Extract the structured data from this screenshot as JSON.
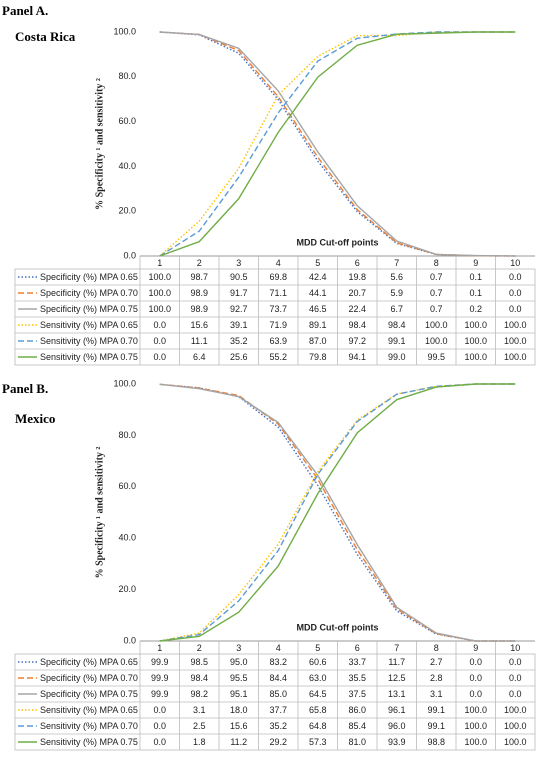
{
  "chart_data": [
    {
      "type": "line",
      "panel_label": "Panel A.",
      "title": "Costa Rica",
      "y_label": "% Specificity ¹ and sensitivity ²",
      "x_label": "MDD Cut-off points",
      "x": [
        1,
        2,
        3,
        4,
        5,
        6,
        7,
        8,
        9,
        10
      ],
      "xlim": [
        0.5,
        10.5
      ],
      "ylim": [
        0,
        100
      ],
      "yticks": [
        {
          "value": 0,
          "label": "0.0"
        },
        {
          "value": 20,
          "label": "20.0"
        },
        {
          "value": 40,
          "label": "40.0"
        },
        {
          "value": 60,
          "label": "60.0"
        },
        {
          "value": 80,
          "label": "80.0"
        },
        {
          "value": 100,
          "label": "100.0"
        }
      ],
      "grid": false,
      "series": [
        {
          "name": "Specificity (%) MPA 0.65",
          "color": "#4472c4",
          "dash": "dotted",
          "values": [
            100.0,
            98.7,
            90.5,
            69.8,
            42.4,
            19.8,
            5.6,
            0.7,
            0.1,
            0.0
          ],
          "value_labels": [
            "100.0",
            "98.7",
            "90.5",
            "69.8",
            "42.4",
            "19.8",
            "5.6",
            "0.7",
            "0.1",
            "0.0"
          ]
        },
        {
          "name": "Specificity (%) MPA 0.70",
          "color": "#ed7d31",
          "dash": "dashed",
          "values": [
            100.0,
            98.9,
            91.7,
            71.1,
            44.1,
            20.7,
            5.9,
            0.7,
            0.1,
            0.0
          ],
          "value_labels": [
            "100.0",
            "98.9",
            "91.7",
            "71.1",
            "44.1",
            "20.7",
            "5.9",
            "0.7",
            "0.1",
            "0.0"
          ]
        },
        {
          "name": "Specificity (%) MPA 0.75",
          "color": "#a5a5a5",
          "dash": "solid",
          "values": [
            100.0,
            98.9,
            92.7,
            73.7,
            46.5,
            22.4,
            6.7,
            0.7,
            0.2,
            0.0
          ],
          "value_labels": [
            "100.0",
            "98.9",
            "92.7",
            "73.7",
            "46.5",
            "22.4",
            "6.7",
            "0.7",
            "0.2",
            "0.0"
          ]
        },
        {
          "name": "Sensitivity (%) MPA 0.65",
          "color": "#ffc000",
          "dash": "dotted",
          "values": [
            0.0,
            15.6,
            39.1,
            71.9,
            89.1,
            98.4,
            98.4,
            100.0,
            100.0,
            100.0
          ],
          "value_labels": [
            "0.0",
            "15.6",
            "39.1",
            "71.9",
            "89.1",
            "98.4",
            "98.4",
            "100.0",
            "100.0",
            "100.0"
          ]
        },
        {
          "name": "Sensitivity (%) MPA 0.70",
          "color": "#5b9bd5",
          "dash": "dashed",
          "values": [
            0.0,
            11.1,
            35.2,
            63.9,
            87.0,
            97.2,
            99.1,
            100.0,
            100.0,
            100.0
          ],
          "value_labels": [
            "0.0",
            "11.1",
            "35.2",
            "63.9",
            "87.0",
            "97.2",
            "99.1",
            "100.0",
            "100.0",
            "100.0"
          ]
        },
        {
          "name": "Sensitivity (%) MPA 0.75",
          "color": "#70ad47",
          "dash": "solid",
          "values": [
            0.0,
            6.4,
            25.6,
            55.2,
            79.8,
            94.1,
            99.0,
            99.5,
            100.0,
            100.0
          ],
          "value_labels": [
            "0.0",
            "6.4",
            "25.6",
            "55.2",
            "79.8",
            "94.1",
            "99.0",
            "99.5",
            "100.0",
            "100.0"
          ]
        }
      ]
    },
    {
      "type": "line",
      "panel_label": "Panel B.",
      "title": "Mexico",
      "y_label": "% Specificity ¹ and sensitivity ²",
      "x_label": "MDD Cut-off points",
      "x": [
        1,
        2,
        3,
        4,
        5,
        6,
        7,
        8,
        9,
        10
      ],
      "xlim": [
        0.5,
        10.5
      ],
      "ylim": [
        0,
        100
      ],
      "yticks": [
        {
          "value": 0,
          "label": "0.0"
        },
        {
          "value": 20,
          "label": "20.0"
        },
        {
          "value": 40,
          "label": "40.0"
        },
        {
          "value": 60,
          "label": "60.0"
        },
        {
          "value": 80,
          "label": "80.0"
        },
        {
          "value": 100,
          "label": "100.0"
        }
      ],
      "grid": false,
      "series": [
        {
          "name": "Specificity (%) MPA 0.65",
          "color": "#4472c4",
          "dash": "dotted",
          "values": [
            99.9,
            98.5,
            95.0,
            83.2,
            60.6,
            33.7,
            11.7,
            2.7,
            0.0,
            0.0
          ],
          "value_labels": [
            "99.9",
            "98.5",
            "95.0",
            "83.2",
            "60.6",
            "33.7",
            "11.7",
            "2.7",
            "0.0",
            "0.0"
          ]
        },
        {
          "name": "Specificity (%) MPA 0.70",
          "color": "#ed7d31",
          "dash": "dashed",
          "values": [
            99.9,
            98.4,
            95.5,
            84.4,
            63.0,
            35.5,
            12.5,
            2.8,
            0.0,
            0.0
          ],
          "value_labels": [
            "99.9",
            "98.4",
            "95.5",
            "84.4",
            "63.0",
            "35.5",
            "12.5",
            "2.8",
            "0.0",
            "0.0"
          ]
        },
        {
          "name": "Specificity (%) MPA 0.75",
          "color": "#a5a5a5",
          "dash": "solid",
          "values": [
            99.9,
            98.2,
            95.1,
            85.0,
            64.5,
            37.5,
            13.1,
            3.1,
            0.0,
            0.0
          ],
          "value_labels": [
            "99.9",
            "98.2",
            "95.1",
            "85.0",
            "64.5",
            "37.5",
            "13.1",
            "3.1",
            "0.0",
            "0.0"
          ]
        },
        {
          "name": "Sensitivity (%) MPA 0.65",
          "color": "#ffc000",
          "dash": "dotted",
          "values": [
            0.0,
            3.1,
            18.0,
            37.7,
            65.8,
            86.0,
            96.1,
            99.1,
            100.0,
            100.0
          ],
          "value_labels": [
            "0.0",
            "3.1",
            "18.0",
            "37.7",
            "65.8",
            "86.0",
            "96.1",
            "99.1",
            "100.0",
            "100.0"
          ]
        },
        {
          "name": "Sensitivity (%) MPA 0.70",
          "color": "#5b9bd5",
          "dash": "dashed",
          "values": [
            0.0,
            2.5,
            15.6,
            35.2,
            64.8,
            85.4,
            96.0,
            99.1,
            100.0,
            100.0
          ],
          "value_labels": [
            "0.0",
            "2.5",
            "15.6",
            "35.2",
            "64.8",
            "85.4",
            "96.0",
            "99.1",
            "100.0",
            "100.0"
          ]
        },
        {
          "name": "Sensitivity (%) MPA 0.75",
          "color": "#70ad47",
          "dash": "solid",
          "values": [
            0.0,
            1.8,
            11.2,
            29.2,
            57.3,
            81.0,
            93.9,
            98.8,
            100.0,
            100.0
          ],
          "value_labels": [
            "0.0",
            "1.8",
            "11.2",
            "29.2",
            "57.3",
            "81.0",
            "93.9",
            "98.8",
            "100.0",
            "100.0"
          ]
        }
      ]
    }
  ]
}
